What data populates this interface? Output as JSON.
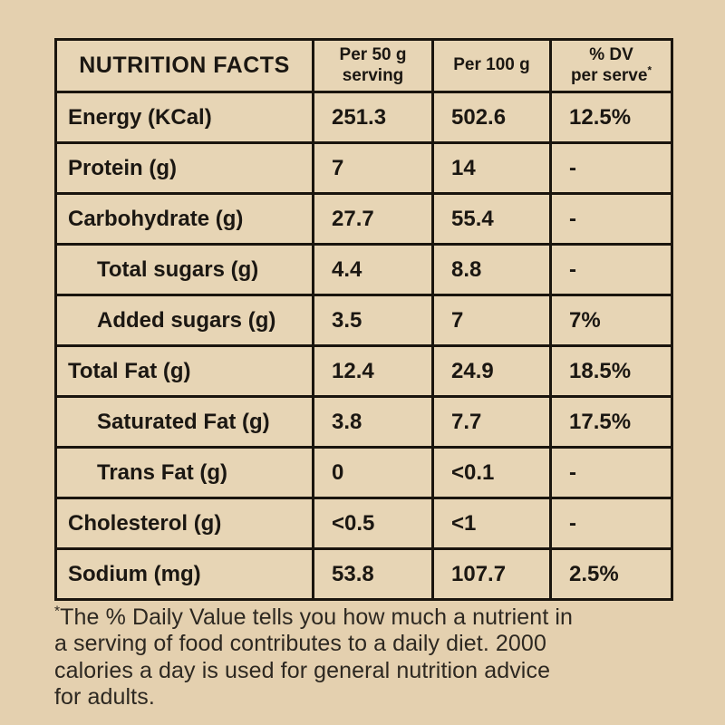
{
  "table": {
    "header": {
      "title": "NUTRITION FACTS",
      "serving_line1": "Per 50 g",
      "serving_line2": "serving",
      "per100": "Per 100 g",
      "dv_line1": "% DV",
      "dv_line2": "per serve",
      "dv_asterisk": "*"
    },
    "rows": [
      {
        "label": "Energy (KCal)",
        "per50": "251.3",
        "per100": "502.6",
        "dv": "12.5%"
      },
      {
        "label": "Protein (g)",
        "per50": "7",
        "per100": "14",
        "dv": "-"
      },
      {
        "label": "Carbohydrate (g)",
        "per50": "27.7",
        "per100": "55.4",
        "dv": "-"
      },
      {
        "label": "Total sugars (g)",
        "per50": "4.4",
        "per100": "8.8",
        "dv": "-"
      },
      {
        "label": "Added sugars (g)",
        "per50": "3.5",
        "per100": "7",
        "dv": "7%"
      },
      {
        "label": "Total Fat (g)",
        "per50": "12.4",
        "per100": "24.9",
        "dv": "18.5%"
      },
      {
        "label": "Saturated Fat (g)",
        "per50": "3.8",
        "per100": "7.7",
        "dv": "17.5%"
      },
      {
        "label": "Trans Fat (g)",
        "per50": "0",
        "per100": "<0.1",
        "dv": "-"
      },
      {
        "label": "Cholesterol (g)",
        "per50": "<0.5",
        "per100": "<1",
        "dv": "-"
      },
      {
        "label": "Sodium (mg)",
        "per50": "53.8",
        "per100": "107.7",
        "dv": "2.5%"
      }
    ]
  },
  "footnote": {
    "asterisk": "*",
    "lines": [
      "The % Daily Value tells you how much a nutrient in",
      "a serving of food contributes to a daily diet. 2000",
      "calories a day is used for general nutrition advice",
      "for adults."
    ]
  },
  "colors": {
    "background": "#e4d0af",
    "cell_background": "#e7d5b5",
    "border": "#1a150e",
    "text": "#1b1712"
  }
}
